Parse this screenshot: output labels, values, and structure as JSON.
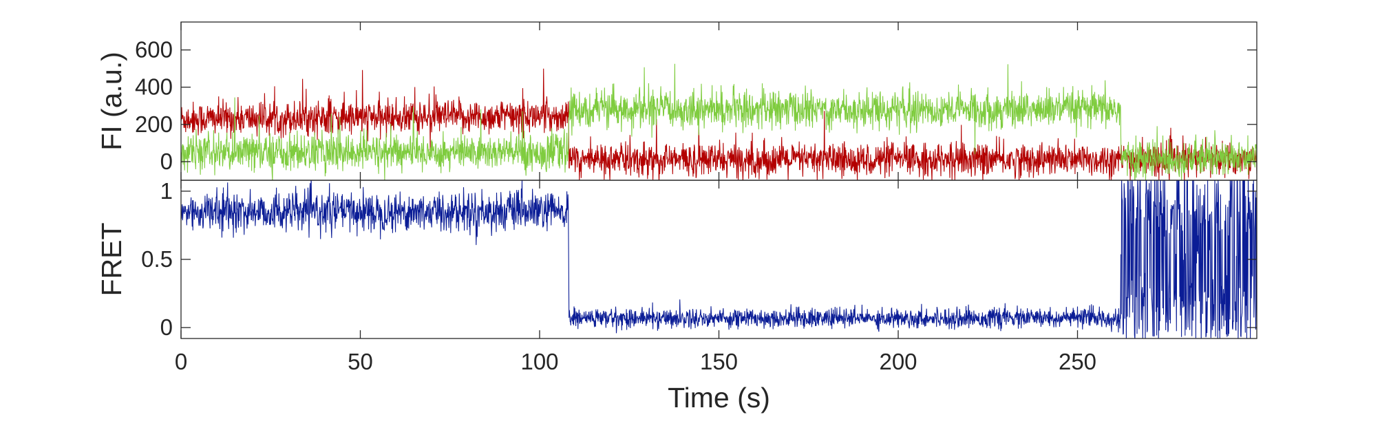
{
  "chart_data": [
    {
      "type": "line",
      "panel": "top",
      "title": "",
      "xlabel": "",
      "ylabel": "FI (a.u.)",
      "xlim": [
        0,
        300
      ],
      "ylim": [
        -100,
        750
      ],
      "x_ticks": [
        0,
        50,
        100,
        150,
        200,
        250
      ],
      "y_ticks": [
        0,
        200,
        400,
        600
      ],
      "y_tick_labels": [
        "0",
        "200",
        "400",
        "600"
      ],
      "grid": false,
      "series": [
        {
          "color": "#b30000",
          "noise_sd": 45,
          "x": [
            0,
            108,
            108.2,
            262,
            262.2,
            300
          ],
          "values": [
            230,
            245,
            10,
            10,
            10,
            10
          ]
        },
        {
          "color": "#7fcc3f",
          "noise_sd": 50,
          "x": [
            0,
            108,
            108.2,
            262,
            262.2,
            300
          ],
          "values": [
            50,
            50,
            280,
            280,
            15,
            15
          ]
        }
      ]
    },
    {
      "type": "line",
      "panel": "bottom",
      "title": "",
      "xlabel": "Time (s)",
      "ylabel": "FRET",
      "xlim": [
        0,
        300
      ],
      "ylim": [
        -0.08,
        1.08
      ],
      "x_ticks": [
        0,
        50,
        100,
        150,
        200,
        250
      ],
      "x_tick_labels": [
        "0",
        "50",
        "100",
        "150",
        "200",
        "250"
      ],
      "y_ticks": [
        0,
        0.5,
        1
      ],
      "y_tick_labels": [
        "0",
        "0.5",
        "1"
      ],
      "grid": false,
      "series": [
        {
          "color": "#0b1d96",
          "x": [
            0,
            108,
            108.2,
            262,
            262.2,
            300
          ],
          "values": [
            0.85,
            0.85,
            0.07,
            0.07,
            0.5,
            0.5
          ],
          "spread": [
            0.12,
            0.12,
            0.06,
            0.06,
            0.5,
            0.5
          ]
        }
      ]
    }
  ]
}
